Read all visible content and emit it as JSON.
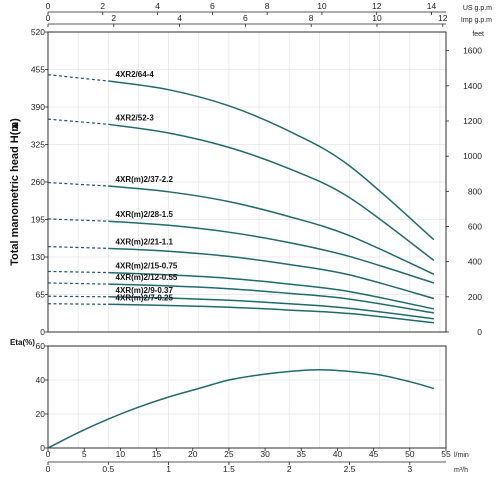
{
  "chart_data": [
    {
      "type": "line",
      "ylabel": "Total manometric head H(m)",
      "ylabel_arrow": "▲",
      "y2label": "feet",
      "x_top1_label": "US g.p.m",
      "x_top2_label": "Imp g.p.m",
      "ylim": [
        0,
        520
      ],
      "xlim_m3h": [
        0,
        3.3
      ],
      "grid": true,
      "y_ticks": [
        "0",
        "65",
        "130",
        "195",
        "260",
        "325",
        "390",
        "455",
        "520"
      ],
      "y2_ticks": [
        "0",
        "200",
        "400",
        "600",
        "800",
        "1000",
        "1200",
        "1400",
        "1600"
      ],
      "x_top1_ticks": [
        "0",
        "2",
        "4",
        "6",
        "8",
        "10",
        "12",
        "14"
      ],
      "x_top2_ticks": [
        "0",
        "2",
        "4",
        "6",
        "8",
        "10",
        "12"
      ],
      "series": [
        {
          "name": "4XR2/64-4",
          "x": [
            0,
            0.5,
            1,
            1.5,
            2,
            2.5,
            3.2
          ],
          "y": [
            446,
            435,
            420,
            392,
            348,
            288,
            160
          ]
        },
        {
          "name": "4XR2/52-3",
          "x": [
            0,
            0.5,
            1,
            1.5,
            2,
            2.5,
            3.2
          ],
          "y": [
            369,
            360,
            345,
            320,
            283,
            233,
            124
          ]
        },
        {
          "name": "4XR(m)2/37-2.2",
          "x": [
            0,
            0.5,
            1,
            1.5,
            2,
            2.5,
            3.2
          ],
          "y": [
            259,
            253,
            243,
            226,
            200,
            167,
            100
          ]
        },
        {
          "name": "4XR(m)2/28-1.5",
          "x": [
            0,
            0.5,
            1,
            1.5,
            2,
            2.5,
            3.2
          ],
          "y": [
            196,
            192,
            185,
            173,
            155,
            131,
            85
          ]
        },
        {
          "name": "4XR(m)2/21-1.1",
          "x": [
            0,
            0.5,
            1,
            1.5,
            2,
            2.5,
            3.2
          ],
          "y": [
            148,
            145,
            140,
            131,
            117,
            99,
            58
          ]
        },
        {
          "name": "4XR(m)2/15-0.75",
          "x": [
            0,
            0.5,
            1,
            1.5,
            2,
            2.5,
            3.2
          ],
          "y": [
            105,
            103,
            99,
            93,
            83,
            70,
            40
          ]
        },
        {
          "name": "4XR(m)2/12-0.55",
          "x": [
            0,
            0.5,
            1,
            1.5,
            2,
            2.5,
            3.2
          ],
          "y": [
            85,
            83,
            80,
            75,
            67,
            57,
            33
          ]
        },
        {
          "name": "4XR(m)2/9-0.37",
          "x": [
            0,
            0.5,
            1,
            1.5,
            2,
            2.5,
            3.2
          ],
          "y": [
            62,
            61,
            59,
            55,
            49,
            41,
            23
          ]
        },
        {
          "name": "4XR(m)2/7-0.25",
          "x": [
            0,
            0.5,
            1,
            1.5,
            2,
            2.5,
            3.2
          ],
          "y": [
            49,
            48,
            46,
            43,
            38,
            32,
            16
          ]
        }
      ]
    },
    {
      "type": "line",
      "ylabel": "Eta(%)",
      "ylim": [
        0,
        60
      ],
      "xlim_m3h": [
        0,
        3.3
      ],
      "grid": true,
      "y_ticks": [
        "0",
        "20",
        "40",
        "60"
      ],
      "x_lmin_ticks": [
        "0",
        "5",
        "10",
        "15",
        "20",
        "25",
        "30",
        "35",
        "40",
        "45",
        "50",
        "55"
      ],
      "x_lmin_label": "l/min",
      "x_m3h_ticks": [
        "0",
        "0.5",
        "1",
        "1.5",
        "2",
        "2.5",
        "3"
      ],
      "x_m3h_label": "m³/h",
      "series": [
        {
          "x": [
            0,
            0.25,
            0.5,
            0.75,
            1,
            1.25,
            1.5,
            1.75,
            2,
            2.25,
            2.5,
            2.75,
            3,
            3.2
          ],
          "y": [
            0,
            9,
            17,
            24,
            30,
            35,
            40,
            43,
            45,
            46,
            45,
            43,
            39,
            35
          ]
        }
      ]
    }
  ]
}
